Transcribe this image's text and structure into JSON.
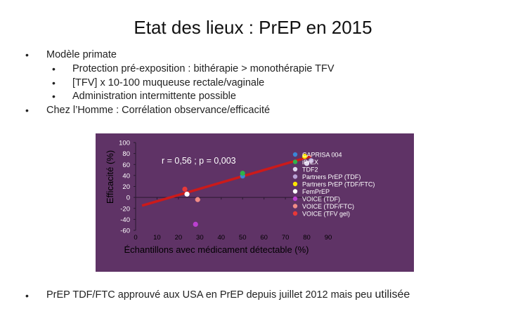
{
  "slide": {
    "title": "Etat des lieux : PrEP en 2015",
    "bullets": [
      {
        "text": "Modèle primate",
        "subs": [
          "Protection pré-exposition : bithérapie > monothérapie TFV",
          "[TFV] x 10-100 muqueuse rectale/vaginale",
          "Administration intermittente possible"
        ]
      },
      {
        "text": "Chez l’Homme : Corrélation observance/efficacité",
        "subs": []
      }
    ],
    "bottom_text": "PrEP TDF/FTC approuvé aux USA en PrEP depuis juillet 2012 mais peu",
    "bottom_emphasis": "utilisée"
  },
  "chart_data": {
    "type": "scatter",
    "background": "#5f3366",
    "xlabel": "Échantillons avec médicament détectable (%)",
    "ylabel": "Efficacité (%)",
    "xlim": [
      0,
      90
    ],
    "ylim": [
      -60,
      100
    ],
    "xticks": [
      0,
      10,
      20,
      30,
      40,
      50,
      60,
      70,
      80,
      90
    ],
    "yticks": [
      100,
      80,
      60,
      40,
      20,
      0,
      -20,
      -40,
      -60
    ],
    "annotation": "r = 0,56 ; p = 0,003",
    "legend_position": "right",
    "trend_line": {
      "color": "#cc1a1a",
      "from": [
        3,
        -15
      ],
      "to": [
        82,
        75
      ]
    },
    "series": [
      {
        "name": "CAPRISA 004",
        "color": "#3a86d6",
        "points": [
          [
            50,
            39
          ]
        ]
      },
      {
        "name": "iPrEX",
        "color": "#2fb34a",
        "points": [
          [
            50,
            44
          ]
        ]
      },
      {
        "name": "TDF2",
        "color": "#e0d6ee",
        "points": [
          [
            80,
            62
          ]
        ]
      },
      {
        "name": "Partners PrEP (TDF)",
        "color": "#b9a2d6",
        "points": [
          [
            82,
            67
          ]
        ]
      },
      {
        "name": "Partners PrEP (TDF/FTC)",
        "color": "#ffe600",
        "points": [
          [
            79,
            75
          ]
        ]
      },
      {
        "name": "FemPrEP",
        "color": "#ffffff",
        "points": [
          [
            24,
            6
          ]
        ]
      },
      {
        "name": "VOICE (TDF)",
        "color": "#bb40d0",
        "points": [
          [
            28,
            -49
          ]
        ]
      },
      {
        "name": "VOICE (TDF/FTC)",
        "color": "#f08b86",
        "points": [
          [
            29,
            -4
          ]
        ]
      },
      {
        "name": "VOICE (TFV gel)",
        "color": "#e83838",
        "points": [
          [
            23,
            15
          ]
        ]
      }
    ]
  }
}
